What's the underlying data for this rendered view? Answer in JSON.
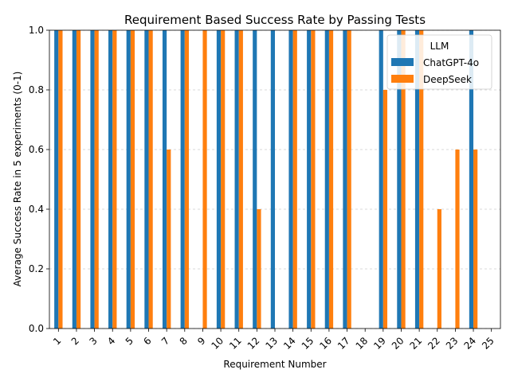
{
  "chart_data": {
    "type": "bar",
    "title": "Requirement Based Success Rate by Passing Tests",
    "xlabel": "Requirement Number",
    "ylabel": "Average Success Rate in 5 experiments (0-1)",
    "ylim": [
      0,
      1
    ],
    "yticks": [
      "0.0",
      "0.2",
      "0.4",
      "0.6",
      "0.8",
      "1.0"
    ],
    "grid": "y-dashed",
    "categories": [
      "1",
      "2",
      "3",
      "4",
      "5",
      "6",
      "7",
      "8",
      "9",
      "10",
      "11",
      "12",
      "13",
      "14",
      "15",
      "16",
      "17",
      "18",
      "19",
      "20",
      "21",
      "22",
      "23",
      "24",
      "25"
    ],
    "legend": {
      "title": "LLM",
      "placement": "upper-right"
    },
    "series": [
      {
        "name": "ChatGPT-4o",
        "color": "#1f77b4",
        "values": [
          1.0,
          1.0,
          1.0,
          1.0,
          1.0,
          1.0,
          1.0,
          1.0,
          0.0,
          1.0,
          1.0,
          1.0,
          1.0,
          1.0,
          1.0,
          1.0,
          1.0,
          0.0,
          1.0,
          1.0,
          1.0,
          0.0,
          0.0,
          1.0,
          0.0
        ]
      },
      {
        "name": "DeepSeek",
        "color": "#ff7f0e",
        "values": [
          1.0,
          1.0,
          1.0,
          1.0,
          1.0,
          1.0,
          0.6,
          1.0,
          1.0,
          1.0,
          1.0,
          0.4,
          0.0,
          1.0,
          1.0,
          1.0,
          1.0,
          0.0,
          0.8,
          1.0,
          1.0,
          0.4,
          0.6,
          0.6,
          0.0
        ]
      }
    ]
  }
}
